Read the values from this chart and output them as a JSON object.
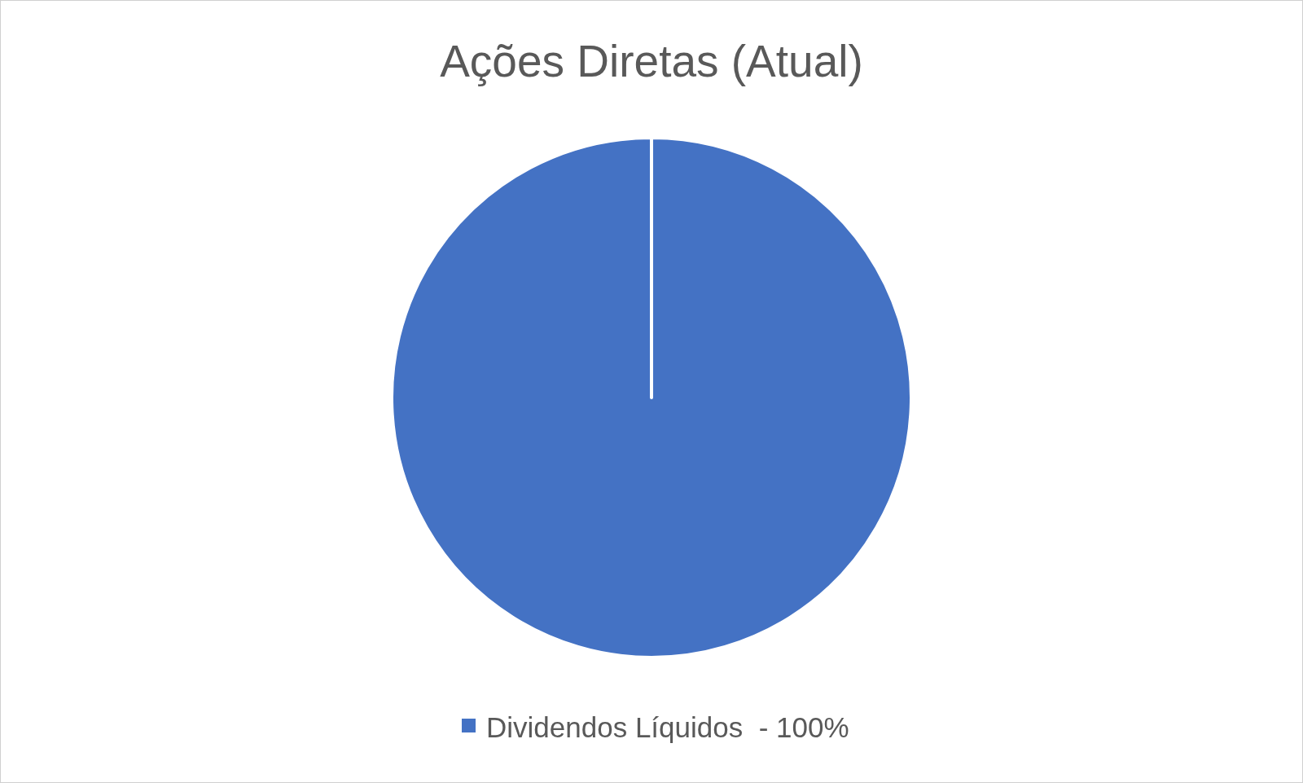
{
  "chart_data": {
    "type": "pie",
    "title": "Ações Diretas (Atual)",
    "categories": [
      "Dividendos Líquidos  - 100%"
    ],
    "values": [
      100
    ],
    "colors": [
      "#4472c4"
    ],
    "legend": "bottom"
  }
}
